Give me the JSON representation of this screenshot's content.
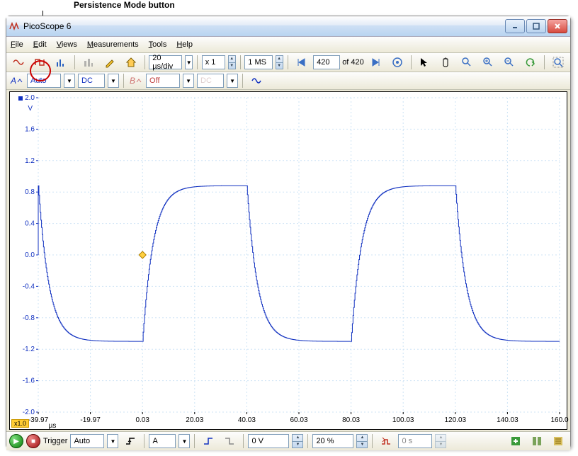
{
  "annotation": {
    "label": "Persistence Mode button"
  },
  "window": {
    "title": "PicoScope 6",
    "min_tooltip": "Minimize",
    "max_tooltip": "Maximize",
    "close_tooltip": "Close"
  },
  "menu": {
    "file": "File",
    "edit": "Edit",
    "views": "Views",
    "measurements": "Measurements",
    "tools": "Tools",
    "help": "Help"
  },
  "toolbar": {
    "timebase": "20 µs/div",
    "xmult": "x 1",
    "samples": "1 MS",
    "frame_current": "420",
    "frame_of": "of",
    "frame_total": "420"
  },
  "channels": {
    "a_label": "A",
    "a_range": "Auto",
    "a_coupling": "DC",
    "b_label": "B",
    "b_range": "Off",
    "b_coupling": "DC"
  },
  "chart": {
    "type": "line",
    "y_unit": "V",
    "y_ticks": [
      "2.0",
      "1.6",
      "1.2",
      "0.8",
      "0.4",
      "0.0",
      "-0.4",
      "-0.8",
      "-1.2",
      "-1.6",
      "-2.0"
    ],
    "y_color": "#1030c0",
    "x_unit": "µs",
    "x_ticks": [
      "-39.97",
      "-19.97",
      "0.03",
      "20.03",
      "40.03",
      "60.03",
      "80.03",
      "100.03",
      "120.03",
      "140.03",
      "160.0"
    ],
    "grid_color": "#cde3f5",
    "axis_color": "#1030c0",
    "trace_color": "#1030c0",
    "marker_color": "#ffd040",
    "marker_border": "#b08000",
    "background": "#ffffff",
    "ylim": [
      -2.0,
      2.0
    ],
    "xlim": [
      -39.97,
      160.0
    ],
    "high_level": 0.88,
    "low_level": -1.1,
    "period_us": 80,
    "edge1_us": 0.03,
    "scale_badge": "x1.0",
    "marker_x": 0.03,
    "marker_y": 0.0
  },
  "trigger": {
    "label": "Trigger",
    "mode": "Auto",
    "channel": "A",
    "level": "0 V",
    "pretrig": "20 %",
    "delay": "0 s"
  },
  "colors": {
    "window_bg": "#ece9d8",
    "titlebar_grad_top": "#e4ecf7",
    "titlebar_grad_bot": "#b8d4f0",
    "close_red": "#d74b3f"
  }
}
